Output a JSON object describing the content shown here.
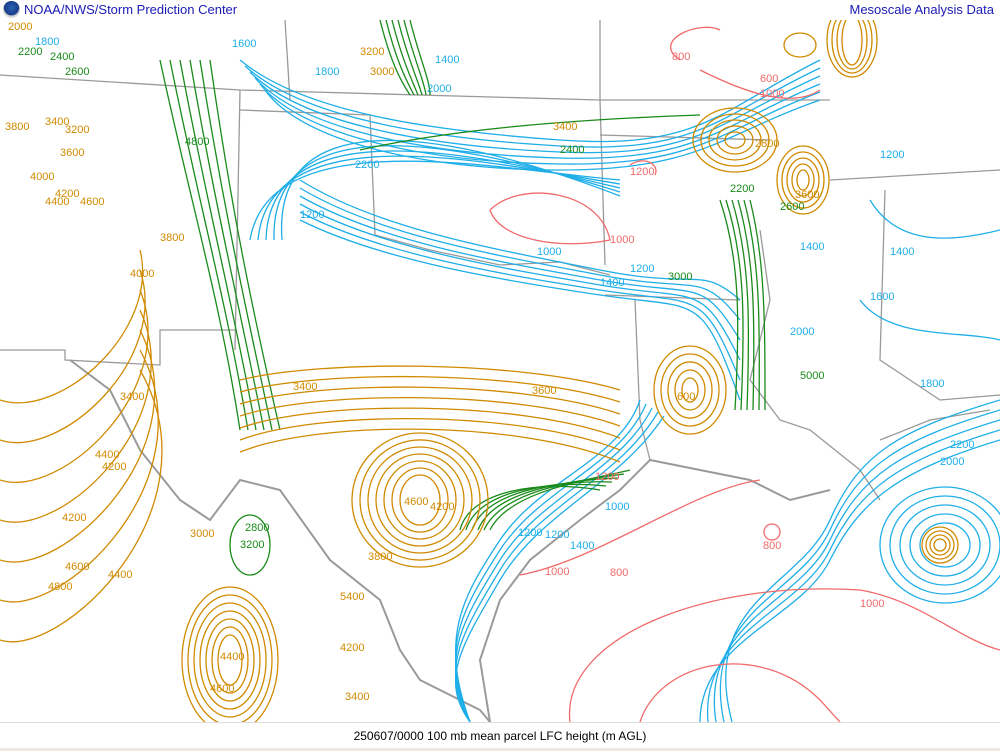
{
  "header": {
    "title": "NOAA/NWS/Storm Prediction Center",
    "right_title": "Mesoscale Analysis Data",
    "logo_icon": "noaa-logo-icon"
  },
  "footer": {
    "caption": "250607/0000 100 mb mean parcel LFC height (m AGL)"
  },
  "map": {
    "colors": {
      "low": "#f06a6a",
      "mid_low": "#1eaee8",
      "mid": "#1a8a1a",
      "high": "#d08a00",
      "borders": "#9a9a9a"
    },
    "contour_labels": [
      "2000",
      "1800",
      "1600",
      "2200",
      "2400",
      "2600",
      "3800",
      "3400",
      "3200",
      "3600",
      "4000",
      "4200",
      "4400",
      "4600",
      "4800",
      "2200",
      "1200",
      "1400",
      "1200",
      "1000",
      "1000",
      "1200",
      "1400",
      "1600",
      "1800",
      "2000",
      "3000",
      "3200",
      "3400",
      "2800",
      "3600",
      "3000",
      "2600",
      "2400",
      "2200",
      "1400",
      "1200",
      "2000",
      "1800",
      "1400",
      "1200",
      "2200",
      "2000",
      "1200",
      "1400",
      "1000",
      "800",
      "1000",
      "800",
      "3400",
      "3600",
      "3400",
      "4000",
      "3800",
      "4200",
      "4400",
      "4200",
      "4600",
      "4800",
      "3000",
      "3200",
      "2800",
      "5000",
      "4600",
      "4200",
      "3800",
      "4400",
      "5400",
      "4400",
      "4600",
      "4200",
      "3400",
      "600",
      "800",
      "600",
      "1000",
      "1200",
      "1000"
    ]
  }
}
